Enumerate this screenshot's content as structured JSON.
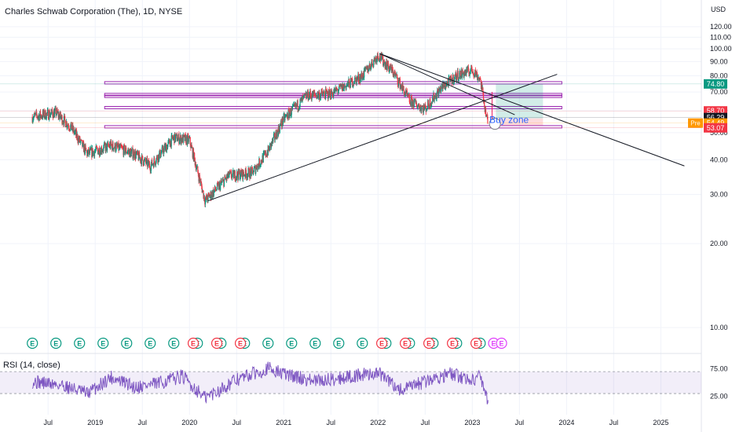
{
  "header": {
    "title": "Charles Schwab Corporation (The), 1D, NYSE"
  },
  "chart_data": {
    "type": "candlestick",
    "title": "Charles Schwab Corporation (The), 1D, NYSE",
    "currency": "USD",
    "price_axis": {
      "scale": "log",
      "ticks": [
        "120.00",
        "110.00",
        "100.00",
        "90.00",
        "80.00",
        "70.00",
        "60.00",
        "50.00",
        "40.00",
        "30.00",
        "20.00",
        "10.00"
      ]
    },
    "x_ticks": [
      "Jul",
      "2019",
      "Jul",
      "2020",
      "Jul",
      "2021",
      "Jul",
      "2022",
      "Jul",
      "2023",
      "Jul",
      "2024",
      "Jul",
      "2025"
    ],
    "price_path": [
      {
        "date": "2018-05",
        "price": 57
      },
      {
        "date": "2018-08",
        "price": 59
      },
      {
        "date": "2018-10",
        "price": 52
      },
      {
        "date": "2018-12",
        "price": 42
      },
      {
        "date": "2019-03",
        "price": 45
      },
      {
        "date": "2019-06",
        "price": 42
      },
      {
        "date": "2019-08",
        "price": 38
      },
      {
        "date": "2019-11",
        "price": 48
      },
      {
        "date": "2020-01",
        "price": 47
      },
      {
        "date": "2020-03",
        "price": 28.5
      },
      {
        "date": "2020-06",
        "price": 35
      },
      {
        "date": "2020-09",
        "price": 36
      },
      {
        "date": "2020-11",
        "price": 43
      },
      {
        "date": "2021-01",
        "price": 56
      },
      {
        "date": "2021-04",
        "price": 68
      },
      {
        "date": "2021-07",
        "price": 69
      },
      {
        "date": "2021-09",
        "price": 74
      },
      {
        "date": "2021-11",
        "price": 80
      },
      {
        "date": "2022-01",
        "price": 95
      },
      {
        "date": "2022-03",
        "price": 82
      },
      {
        "date": "2022-05",
        "price": 65
      },
      {
        "date": "2022-07",
        "price": 61
      },
      {
        "date": "2022-09",
        "price": 72
      },
      {
        "date": "2022-11",
        "price": 80
      },
      {
        "date": "2023-01",
        "price": 84
      },
      {
        "date": "2023-02",
        "price": 78
      },
      {
        "date": "2023-03",
        "price": 53.07
      }
    ],
    "price_labels": [
      {
        "text": "74.80",
        "color": "#089981"
      },
      {
        "text": "58.70",
        "color": "#f23645"
      },
      {
        "text": "56.29",
        "color": "#131722"
      },
      {
        "text": "54.49",
        "color": "#ff9800",
        "tag": "Pre"
      },
      {
        "text": "53.07",
        "color": "#f23645"
      }
    ],
    "horizontal_levels": [
      75.5,
      68.5,
      67.5,
      61.5,
      52.5
    ],
    "annotations": [
      {
        "text": "Buy zone"
      }
    ],
    "rsi": {
      "label": "RSI (14, close)",
      "ticks": [
        "75.00",
        "25.00"
      ],
      "band": [
        30,
        70
      ],
      "path": [
        {
          "date": "2018-05",
          "value": 52
        },
        {
          "date": "2018-09",
          "value": 45
        },
        {
          "date": "2018-12",
          "value": 30
        },
        {
          "date": "2019-03",
          "value": 60
        },
        {
          "date": "2019-06",
          "value": 42
        },
        {
          "date": "2019-09",
          "value": 48
        },
        {
          "date": "2019-12",
          "value": 62
        },
        {
          "date": "2020-03",
          "value": 22
        },
        {
          "date": "2020-07",
          "value": 55
        },
        {
          "date": "2020-11",
          "value": 76
        },
        {
          "date": "2021-01",
          "value": 66
        },
        {
          "date": "2021-05",
          "value": 52
        },
        {
          "date": "2021-09",
          "value": 60
        },
        {
          "date": "2022-01",
          "value": 68
        },
        {
          "date": "2022-04",
          "value": 35
        },
        {
          "date": "2022-07",
          "value": 52
        },
        {
          "date": "2022-10",
          "value": 66
        },
        {
          "date": "2023-01",
          "value": 55
        },
        {
          "date": "2023-02",
          "value": 62
        },
        {
          "date": "2023-03",
          "value": 18
        }
      ]
    },
    "events": {
      "dividends": [
        "2018-05",
        "2018-08",
        "2018-11",
        "2019-02",
        "2019-05",
        "2019-08",
        "2019-11",
        "2020-02",
        "2020-05",
        "2020-08",
        "2020-11",
        "2021-02",
        "2021-05",
        "2021-08",
        "2021-11",
        "2022-02",
        "2022-05",
        "2022-08",
        "2022-11",
        "2023-02"
      ],
      "earnings": [
        "2020-01",
        "2020-04",
        "2020-07",
        "2022-01",
        "2022-04",
        "2022-07",
        "2022-10",
        "2023-01"
      ],
      "flags": [
        {
          "date": "2023-03",
          "kind": "split"
        },
        {
          "date": "2023-04",
          "kind": "earnings-upcoming"
        }
      ],
      "glyph": "E"
    }
  },
  "colors": {
    "up": "#089981",
    "down": "#f23645",
    "level": "#9c27b0",
    "rsi_line": "#7e57c2",
    "rsi_band": "#7e57c2",
    "reward": "#089981",
    "risk": "#f23645"
  }
}
